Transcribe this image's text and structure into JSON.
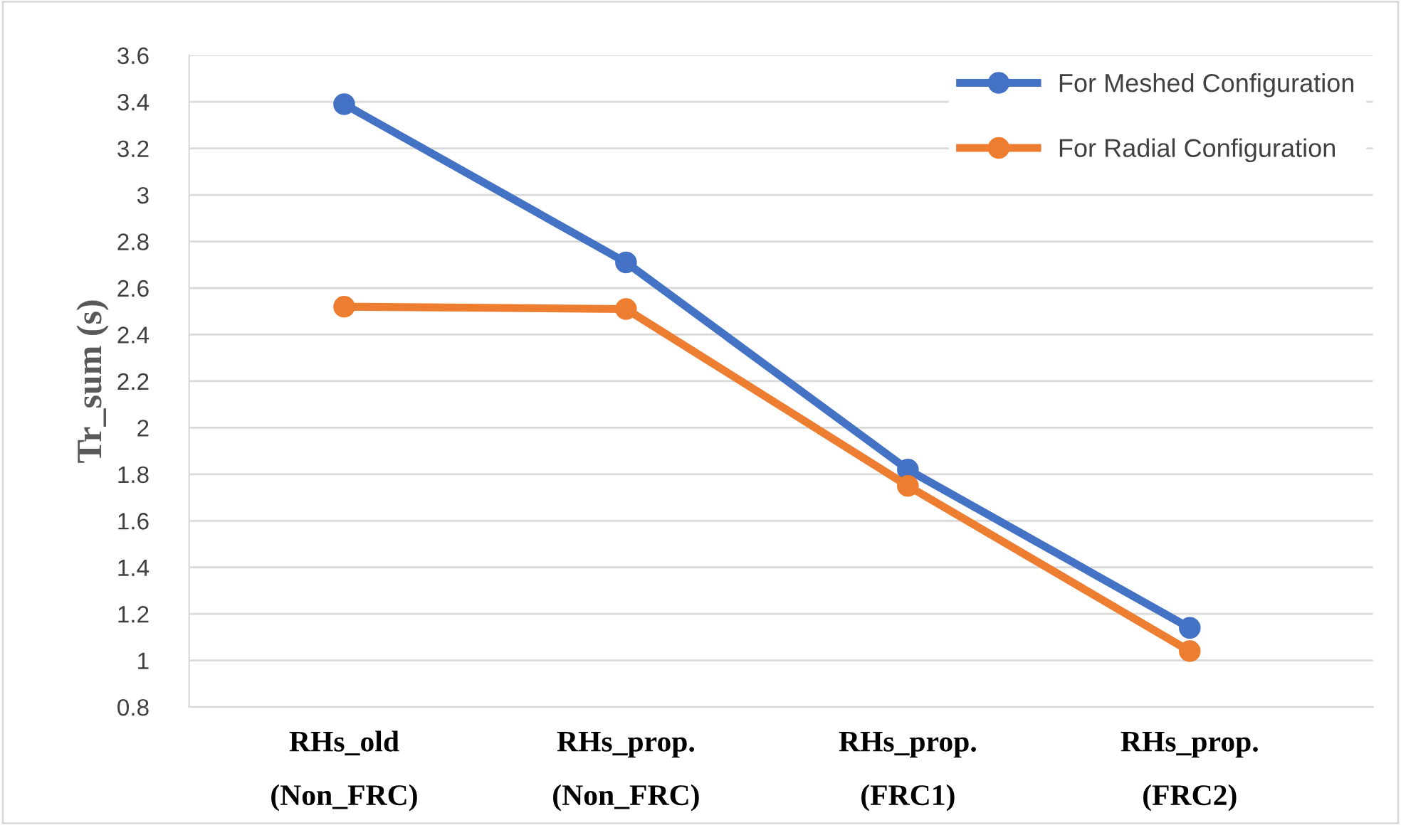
{
  "chart_data": {
    "type": "line",
    "ylabel": "Tr_sum (s)",
    "categories": [
      "RHs_old\n(Non_FRC)",
      "RHs_prop.\n(Non_FRC)",
      "RHs_prop.\n(FRC1)",
      "RHs_prop.\n(FRC2)"
    ],
    "series": [
      {
        "name": "For Meshed Configuration",
        "color": "#4472c4",
        "values": [
          3.39,
          2.71,
          1.82,
          1.14
        ]
      },
      {
        "name": "For Radial Configuration",
        "color": "#ed7d31",
        "values": [
          2.52,
          2.51,
          1.75,
          1.04
        ]
      }
    ],
    "ylim": [
      0.8,
      3.6
    ],
    "yticks": [
      0.8,
      1,
      1.2,
      1.4,
      1.6,
      1.8,
      2,
      2.2,
      2.4,
      2.6,
      2.8,
      3,
      3.2,
      3.4,
      3.6
    ],
    "grid": "y",
    "legend": "top right",
    "marker": "circle",
    "line_style": "solid"
  }
}
